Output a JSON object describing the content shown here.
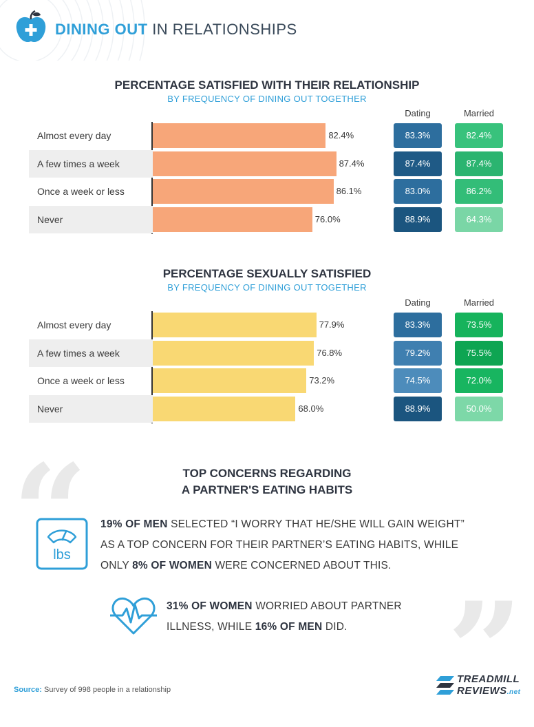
{
  "header": {
    "title_bold": "DINING OUT",
    "title_rest": "IN RELATIONSHIPS"
  },
  "colors": {
    "accent_blue": "#2f9fd8",
    "bar_orange": "#f7a679",
    "bar_yellow": "#f9d873"
  },
  "chart_data": [
    {
      "type": "bar",
      "title": "PERCENTAGE SATISFIED WITH THEIR RELATIONSHIP",
      "subtitle": "BY FREQUENCY OF DINING OUT TOGETHER",
      "categories": [
        "Almost every day",
        "A few times a week",
        "Once a week or less",
        "Never"
      ],
      "values": [
        82.4,
        87.4,
        86.1,
        76.0
      ],
      "value_labels": [
        "82.4%",
        "87.4%",
        "86.1%",
        "76.0%"
      ],
      "xlim": [
        0,
        100
      ],
      "bar_color": "#f7a679",
      "columns": [
        {
          "name": "Dating",
          "labels": [
            "83.3%",
            "87.4%",
            "83.0%",
            "88.9%"
          ],
          "colors": [
            "#2d6e9e",
            "#1f5a86",
            "#2d6e9e",
            "#1b557f"
          ]
        },
        {
          "name": "Married",
          "labels": [
            "82.4%",
            "87.4%",
            "86.2%",
            "64.3%"
          ],
          "colors": [
            "#38c27c",
            "#2bb470",
            "#33bd78",
            "#7ad6a6"
          ]
        }
      ]
    },
    {
      "type": "bar",
      "title": "PERCENTAGE SEXUALLY SATISFIED",
      "subtitle": "BY FREQUENCY OF DINING OUT TOGETHER",
      "categories": [
        "Almost every day",
        "A few times a week",
        "Once a week or less",
        "Never"
      ],
      "values": [
        77.9,
        76.8,
        73.2,
        68.0
      ],
      "value_labels": [
        "77.9%",
        "76.8%",
        "73.2%",
        "68.0%"
      ],
      "xlim": [
        0,
        100
      ],
      "bar_color": "#f9d873",
      "columns": [
        {
          "name": "Dating",
          "labels": [
            "83.3%",
            "79.2%",
            "74.5%",
            "88.9%"
          ],
          "colors": [
            "#2d6e9e",
            "#3f7fb0",
            "#4d8cbb",
            "#1b557f"
          ]
        },
        {
          "name": "Married",
          "labels": [
            "73.5%",
            "75.5%",
            "72.0%",
            "50.0%"
          ],
          "colors": [
            "#16b35c",
            "#0ea552",
            "#18b560",
            "#7dd8a8"
          ]
        }
      ]
    }
  ],
  "concerns": {
    "title_line1": "TOP CONCERNS REGARDING",
    "title_line2": "A PARTNER'S EATING HABITS",
    "item1": {
      "bold1": "19% OF MEN",
      "text1": " SELECTED “I WORRY THAT HE/SHE WILL GAIN WEIGHT”",
      "text2": "AS A TOP CONCERN FOR THEIR PARTNER’S EATING HABITS, WHILE",
      "text3a": "ONLY ",
      "bold2": "8% OF WOMEN",
      "text3b": " WERE CONCERNED ABOUT THIS.",
      "icon_label": "lbs"
    },
    "item2": {
      "bold1": "31% OF WOMEN",
      "text1": " WORRIED ABOUT PARTNER",
      "text2a": "ILLNESS, WHILE ",
      "bold2": "16% OF MEN",
      "text2b": " DID."
    }
  },
  "footer": {
    "source_label": "Source:",
    "source_text": " Survey of 998 people in a relationship",
    "brand_line1": "TREADMILL",
    "brand_line2": "REVIEWS",
    "brand_suffix": ".net"
  }
}
